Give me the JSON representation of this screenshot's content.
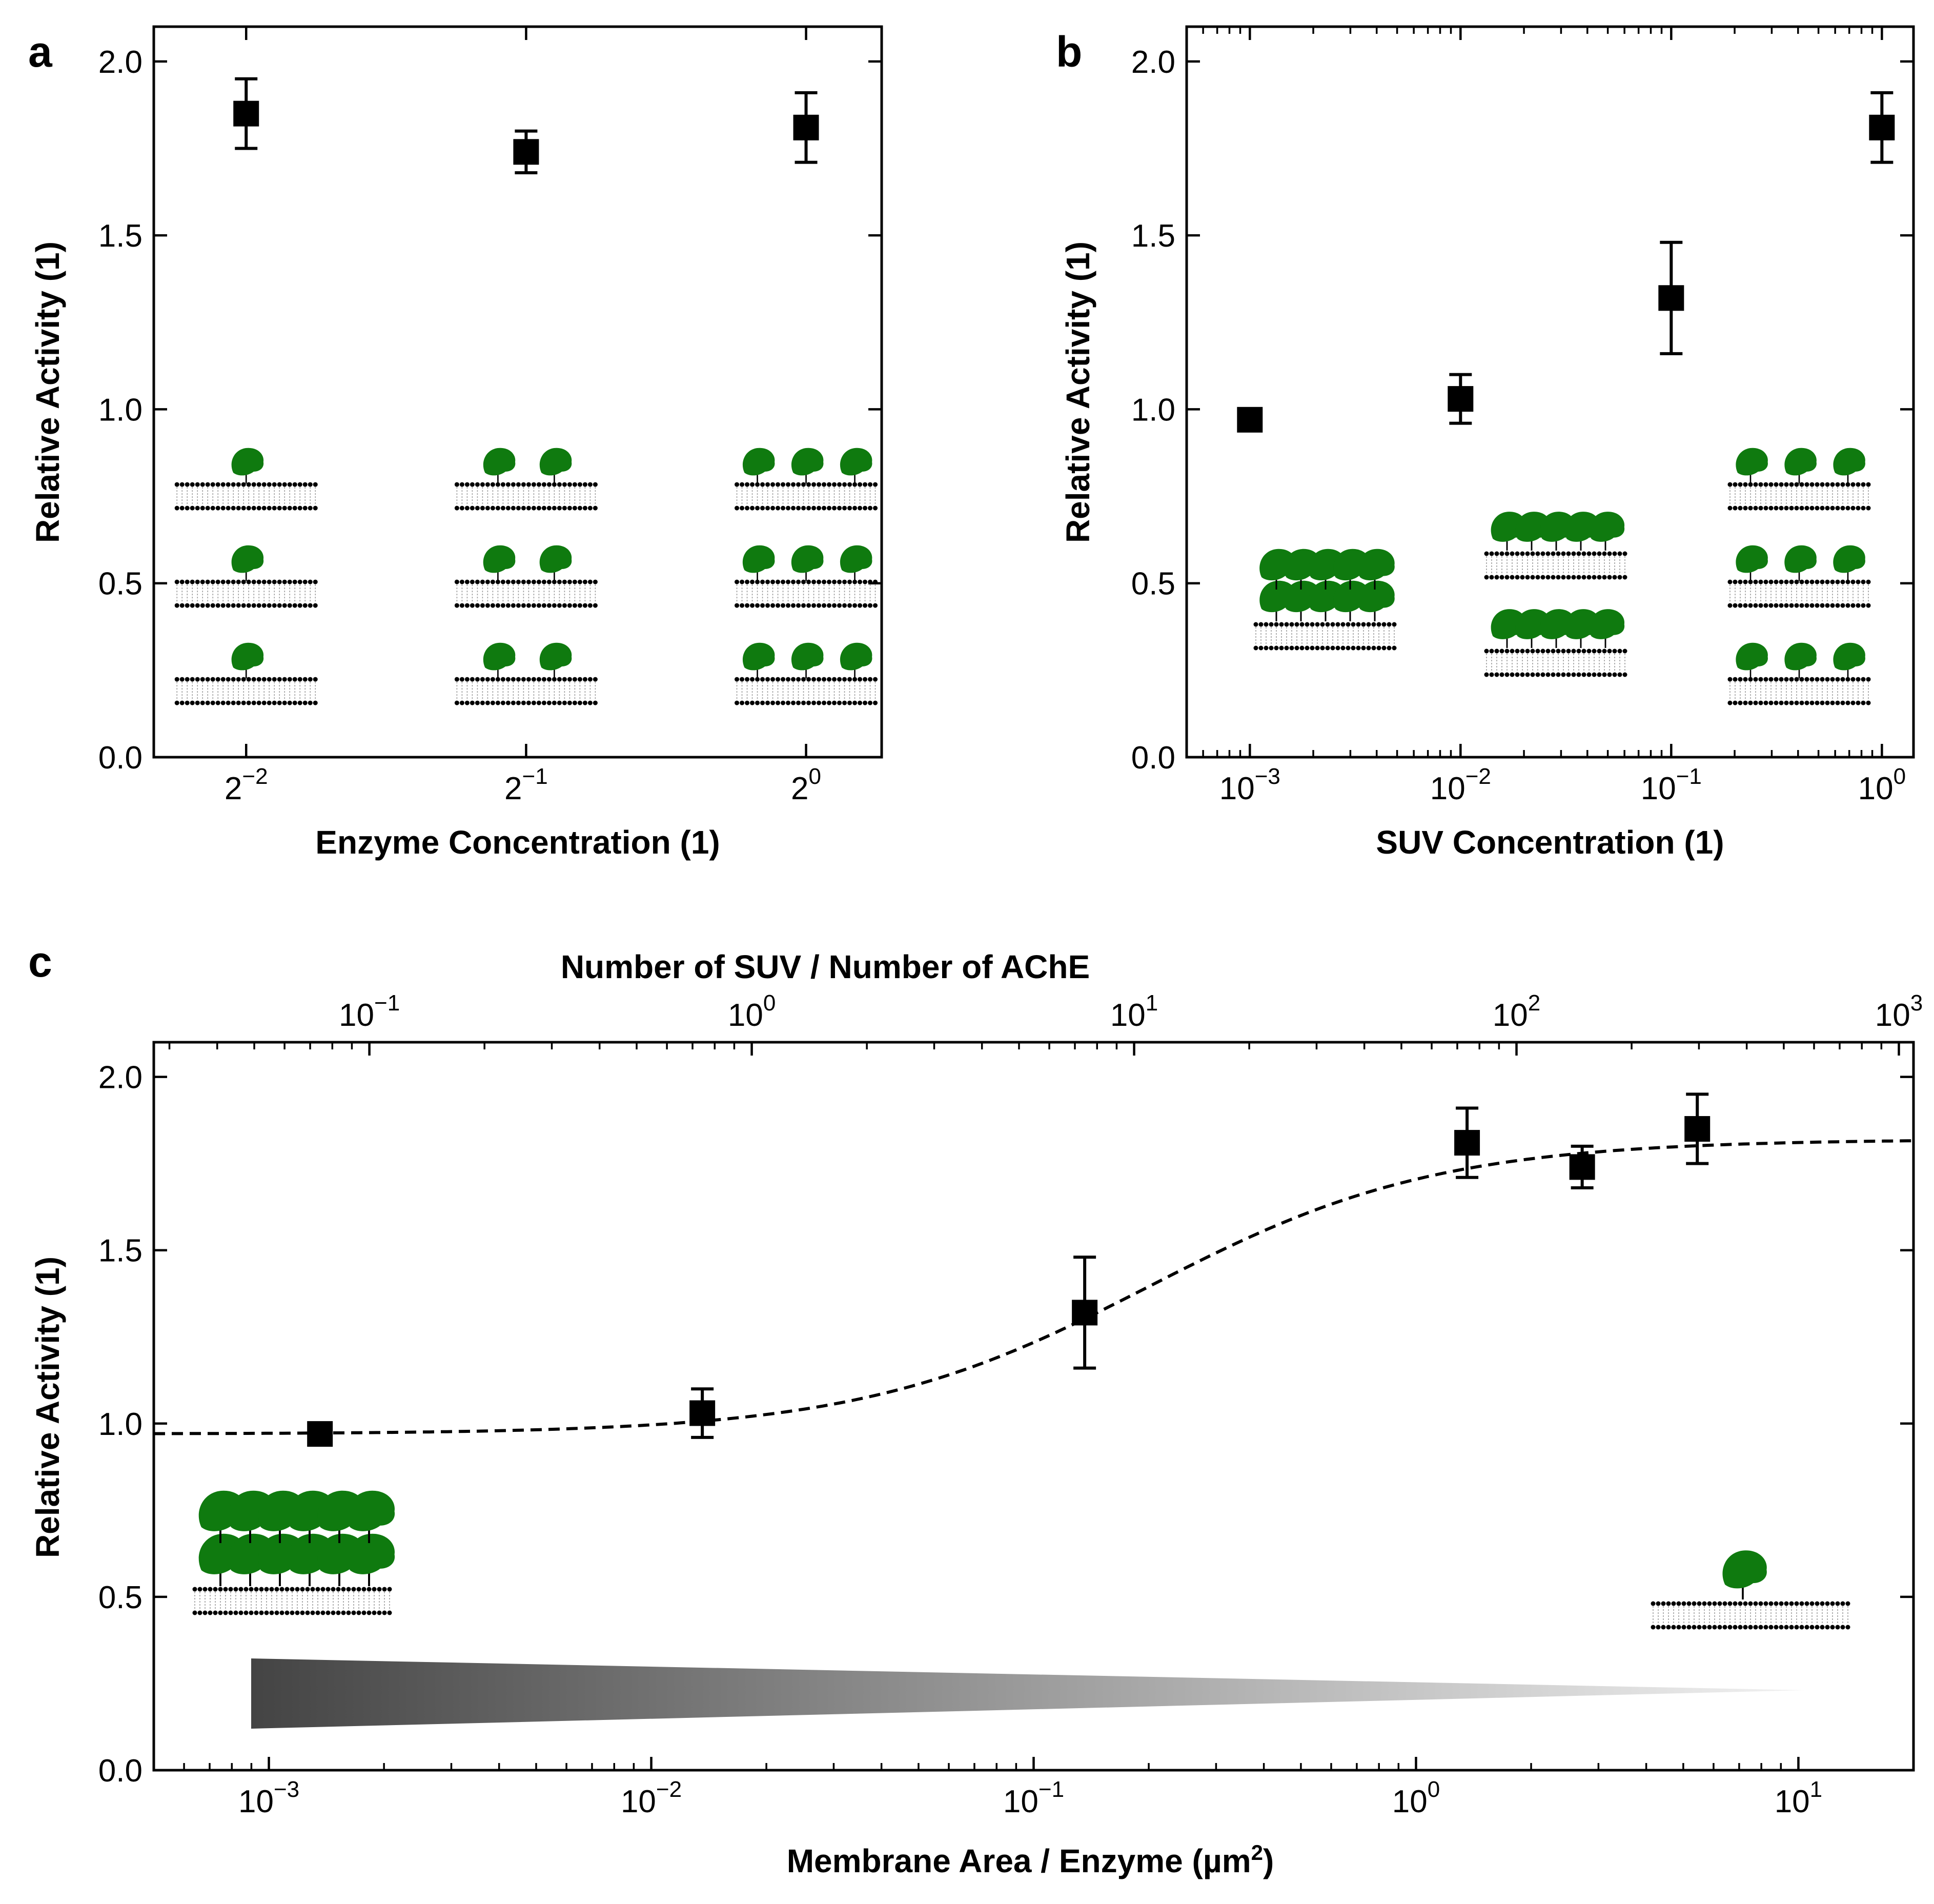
{
  "colors": {
    "enzyme": "#0f7a0f",
    "ink": "#000000",
    "gradient_dark": "#444444",
    "gradient_light": "#f2f2f2"
  },
  "chart_data": [
    {
      "id": "a",
      "panel_label": "a",
      "type": "scatter",
      "xscale": "log2",
      "xlim_exp": [
        -2.33,
        0.27
      ],
      "ylim": [
        0,
        2.1
      ],
      "xlabel": "Enzyme Concentration (1)",
      "ylabel": "Relative Activity (1)",
      "yticks": [
        "0.0",
        "0.5",
        "1.0",
        "1.5",
        "2.0"
      ],
      "xtick_base": "2",
      "xticks_exp": [
        "−2",
        "−1",
        "0"
      ],
      "points": [
        {
          "x_exp": -2,
          "y": 1.85,
          "err": 0.1
        },
        {
          "x_exp": -1,
          "y": 1.74,
          "err": 0.06
        },
        {
          "x_exp": 0,
          "y": 1.81,
          "err": 0.1
        }
      ],
      "insets": [
        {
          "x_exp": -2,
          "enzymes_per_membrane": 1
        },
        {
          "x_exp": -1,
          "enzymes_per_membrane": 2
        },
        {
          "x_exp": 0,
          "enzymes_per_membrane": 3
        }
      ]
    },
    {
      "id": "b",
      "panel_label": "b",
      "type": "scatter",
      "xscale": "log10",
      "xlim_exp": [
        -3.3,
        0.15
      ],
      "ylim": [
        0,
        2.1
      ],
      "xlabel": "SUV Concentration (1)",
      "ylabel": "Relative Activity (1)",
      "yticks": [
        "0.0",
        "0.5",
        "1.0",
        "1.5",
        "2.0"
      ],
      "xtick_base": "10",
      "xticks_exp": [
        "−3",
        "−2",
        "−1",
        "0"
      ],
      "points": [
        {
          "x_exp": -3,
          "y": 0.97,
          "err": 0.03
        },
        {
          "x_exp": -2,
          "y": 1.03,
          "err": 0.07
        },
        {
          "x_exp": -1,
          "y": 1.32,
          "err": 0.16
        },
        {
          "x_exp": 0,
          "y": 1.81,
          "err": 0.1
        }
      ]
    },
    {
      "id": "c",
      "panel_label": "c",
      "type": "scatter",
      "xscale": "log10",
      "xlim": [
        0.0005,
        20
      ],
      "ylim": [
        0,
        2.1
      ],
      "xlabel": "Membrane Area / Enzyme (µm",
      "xlabel_sup": "2",
      "xlabel_end": ")",
      "ylabel": "Relative Activity (1)",
      "yticks": [
        "0.0",
        "0.5",
        "1.0",
        "1.5",
        "2.0"
      ],
      "xtick_base": "10",
      "xticks_exp": [
        "−3",
        "−2",
        "−1",
        "0",
        "1"
      ],
      "top_axis": {
        "label": "Number of SUV / Number of AChE",
        "tick_base": "10",
        "ticks_exp": [
          "−1",
          "0",
          "1",
          "2",
          "3"
        ],
        "ratio_to_bottom": 54.6
      },
      "points": [
        {
          "x": 0.00136,
          "y": 0.97,
          "err": 0.03
        },
        {
          "x": 0.0136,
          "y": 1.03,
          "err": 0.07
        },
        {
          "x": 0.136,
          "y": 1.32,
          "err": 0.16
        },
        {
          "x": 1.36,
          "y": 1.81,
          "err": 0.1
        },
        {
          "x": 2.72,
          "y": 1.74,
          "err": 0.06
        },
        {
          "x": 5.44,
          "y": 1.85,
          "err": 0.1
        }
      ],
      "fit": {
        "style": "dashed",
        "ymin": 0.97,
        "ymax": 1.82,
        "x_half": 0.2,
        "hill": 1.15
      }
    }
  ]
}
